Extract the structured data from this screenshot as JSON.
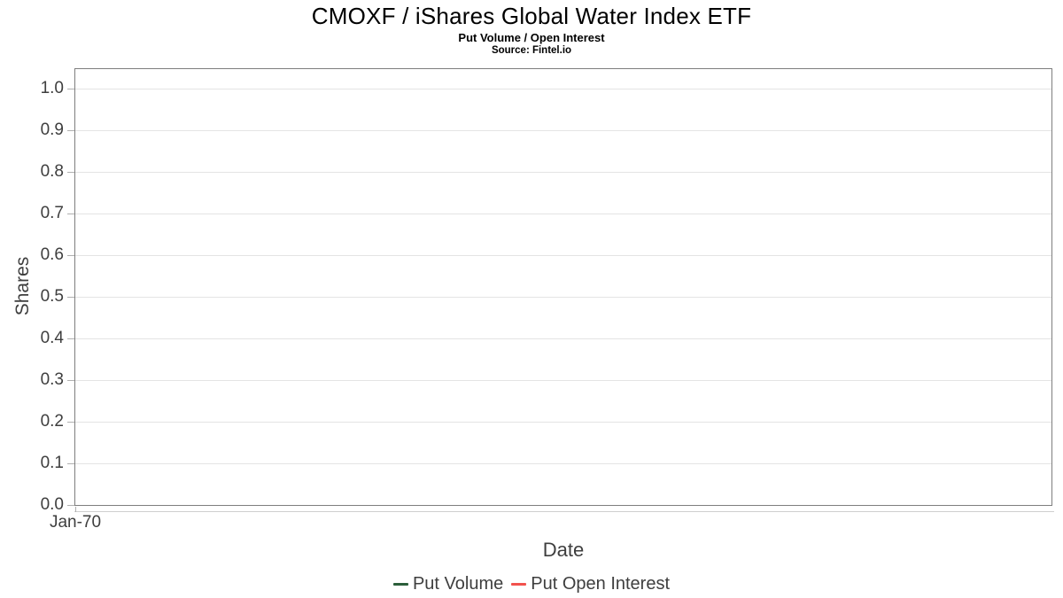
{
  "header": {
    "title": "CMOXF / iShares Global Water Index ETF",
    "subtitle": "Put Volume / Open Interest",
    "source": "Source: Fintel.io"
  },
  "axes": {
    "y_title": "Shares",
    "x_title": "Date",
    "y_tick_labels": [
      "0.0",
      "0.1",
      "0.2",
      "0.3",
      "0.4",
      "0.5",
      "0.6",
      "0.7",
      "0.8",
      "0.9",
      "1.0"
    ],
    "x_tick_labels": [
      "Jan-70"
    ]
  },
  "legend": {
    "items": [
      {
        "label": "Put Volume",
        "color": "#2b5e3a"
      },
      {
        "label": "Put Open Interest",
        "color": "#f2524d"
      }
    ]
  },
  "colors": {
    "plot_border": "#7e7e7e",
    "gridline": "#e4e4e4",
    "axis_text": "#3e3e3e",
    "title_text": "#000000",
    "put_volume": "#2b5e3a",
    "put_open_interest": "#f2524d"
  },
  "chart_data": {
    "type": "line",
    "title": "CMOXF / iShares Global Water Index ETF",
    "subtitle": "Put Volume / Open Interest",
    "source": "Source: Fintel.io",
    "xlabel": "Date",
    "ylabel": "Shares",
    "ylim": [
      0.0,
      1.0
    ],
    "y_ticks": [
      0.0,
      0.1,
      0.2,
      0.3,
      0.4,
      0.5,
      0.6,
      0.7,
      0.8,
      0.9,
      1.0
    ],
    "x_ticks": [
      "Jan-70"
    ],
    "grid": true,
    "legend_position": "bottom",
    "series": [
      {
        "name": "Put Volume",
        "color": "#2b5e3a",
        "x": [],
        "values": []
      },
      {
        "name": "Put Open Interest",
        "color": "#f2524d",
        "x": [],
        "values": []
      }
    ]
  }
}
